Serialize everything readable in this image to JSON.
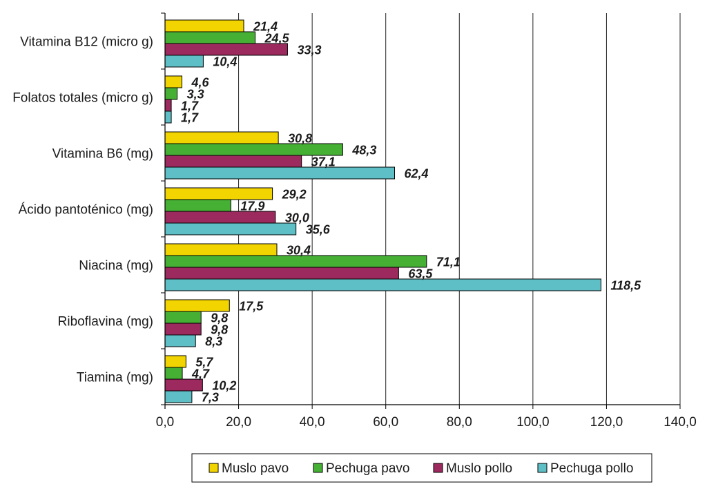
{
  "chart_data": {
    "type": "bar",
    "orientation": "horizontal",
    "categories": [
      "Vitamina B12  (micro g)",
      "Folatos totales (micro g)",
      "Vitamina B6 (mg)",
      "Ácido pantoténico (mg)",
      "Niacina  (mg)",
      "Riboflavina  (mg)",
      "Tiamina  (mg)"
    ],
    "series": [
      {
        "name": "Muslo pavo",
        "color": "#f2d400",
        "values": [
          21.4,
          4.6,
          30.8,
          29.2,
          30.4,
          17.5,
          5.7
        ],
        "labels": [
          "21,4",
          "4,6",
          "30,8",
          "29,2",
          "30,4",
          "17,5",
          "5,7"
        ]
      },
      {
        "name": "Pechuga pavo",
        "color": "#46b035",
        "values": [
          24.5,
          3.3,
          48.3,
          17.9,
          71.1,
          9.8,
          4.7
        ],
        "labels": [
          "24,5",
          "3,3",
          "48,3",
          "17,9",
          "71,1",
          "9,8",
          "4,7"
        ]
      },
      {
        "name": "Muslo pollo",
        "color": "#9c2a5e",
        "values": [
          33.3,
          1.7,
          37.1,
          30.0,
          63.5,
          9.8,
          10.2
        ],
        "labels": [
          "33,3",
          "1,7",
          "37,1",
          "30,0",
          "63,5",
          "9,8",
          "10,2"
        ]
      },
      {
        "name": "Pechuga pollo",
        "color": "#5fbfc6",
        "values": [
          10.4,
          1.7,
          62.4,
          35.6,
          118.5,
          8.3,
          7.3
        ],
        "labels": [
          "10,4",
          "1,7",
          "62,4",
          "35,6",
          "118,5",
          "8,3",
          "7,3"
        ]
      }
    ],
    "xlim": [
      0,
      140
    ],
    "xticks": [
      0,
      20,
      40,
      60,
      80,
      100,
      120,
      140
    ],
    "xtick_labels": [
      "0,0",
      "20,0",
      "40,0",
      "60,0",
      "80,0",
      "100,0",
      "120,0",
      "140,0"
    ],
    "grid": "vertical",
    "legend_position": "bottom",
    "title": "",
    "xlabel": "",
    "ylabel": ""
  }
}
